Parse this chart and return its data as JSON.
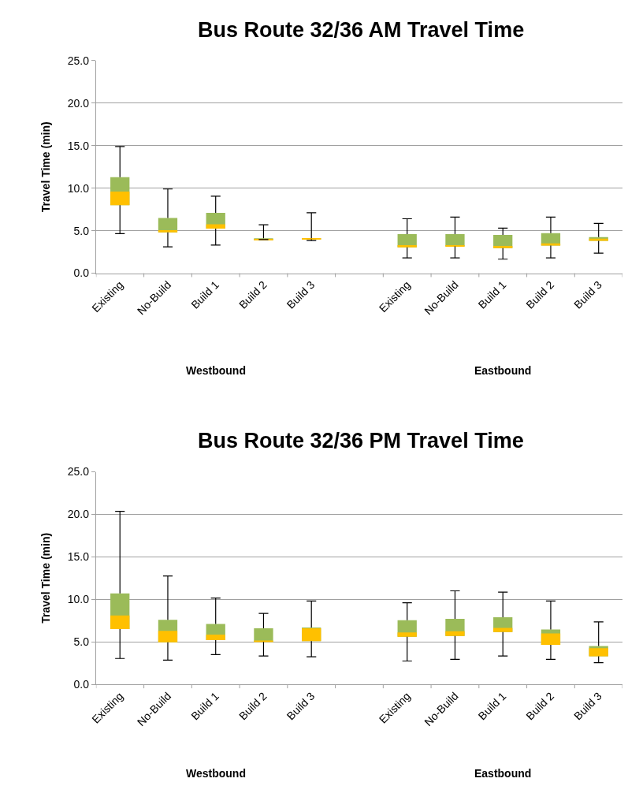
{
  "chart_data": [
    {
      "type": "box",
      "title": "Bus Route 32/36 AM Travel Time",
      "ylabel": "Travel Time (min)",
      "categories": [
        "Existing",
        "No-Build",
        "Build 1",
        "Build 2",
        "Build 3",
        null,
        "Existing",
        "No-Build",
        "Build 1",
        "Build 2",
        "Build 3"
      ],
      "colors": [
        "#ffc000",
        "#ffc000",
        "#ffc000",
        "#ffc000",
        "#ffc000",
        null,
        "#ffc000",
        "#ffc000",
        "#ffc000",
        "#ffc000",
        "#ffc000"
      ],
      "series": [
        {
          "color": "#9bbb59",
          "boxes": [
            {
              "low": 4.65,
              "q1": 8.0,
              "median": 9.6,
              "q3": 11.3,
              "high": 14.9
            },
            {
              "low": 3.1,
              "q1": 4.8,
              "median": 5.05,
              "q3": 6.5,
              "high": 9.9
            },
            {
              "low": 3.3,
              "q1": 5.25,
              "median": 5.75,
              "q3": 7.1,
              "high": 9.05
            },
            {
              "low": 3.95,
              "q1": 3.95,
              "median": 4.0,
              "q3": 4.1,
              "high": 5.7
            },
            {
              "low": 3.85,
              "q1": 4.0,
              "median": 4.05,
              "q3": 4.1,
              "high": 7.1
            },
            null,
            {
              "low": 1.8,
              "q1": 3.05,
              "median": 3.3,
              "q3": 4.6,
              "high": 6.4
            },
            {
              "low": 1.8,
              "q1": 3.15,
              "median": 3.3,
              "q3": 4.6,
              "high": 6.6
            },
            {
              "low": 1.65,
              "q1": 2.95,
              "median": 3.2,
              "q3": 4.5,
              "high": 5.3
            },
            {
              "low": 1.8,
              "q1": 3.25,
              "median": 3.5,
              "q3": 4.7,
              "high": 6.6
            },
            {
              "low": 2.35,
              "q1": 3.8,
              "median": 4.05,
              "q3": 4.25,
              "high": 5.85
            }
          ]
        }
      ],
      "ylim": [
        0,
        25
      ],
      "yticks": [
        {
          "value": 0,
          "label": "0.0"
        },
        {
          "value": 5,
          "label": "5.0"
        },
        {
          "value": 10,
          "label": "10.0"
        },
        {
          "value": 15,
          "label": "15.0"
        },
        {
          "value": 20,
          "label": "20.0"
        },
        {
          "value": 25,
          "label": "25.0"
        }
      ],
      "grid": "y",
      "annotations": [
        "Westbound",
        "Eastbound"
      ]
    },
    {
      "type": "box",
      "title": "Bus Route 32/36 PM Travel Time",
      "ylabel": "Travel Time (min)",
      "categories": [
        "Existing",
        "No-Build",
        "Build 1",
        "Build 2",
        "Build 3",
        null,
        "Existing",
        "No-Build",
        "Build 1",
        "Build 2",
        "Build 3"
      ],
      "colors": [
        "#ffc000",
        "#ffc000",
        "#ffc000",
        "#ffc000",
        "#ffc000",
        null,
        "#ffc000",
        "#ffc000",
        "#ffc000",
        "#ffc000",
        "#ffc000"
      ],
      "series": [
        {
          "color": "#9bbb59",
          "boxes": [
            {
              "low": 3.05,
              "q1": 6.5,
              "median": 8.1,
              "q3": 10.7,
              "high": 20.35
            },
            {
              "low": 2.85,
              "q1": 4.95,
              "median": 6.3,
              "q3": 7.6,
              "high": 12.75
            },
            {
              "low": 3.5,
              "q1": 5.2,
              "median": 5.85,
              "q3": 7.1,
              "high": 10.15
            },
            {
              "low": 3.35,
              "q1": 5.0,
              "median": 5.1,
              "q3": 6.6,
              "high": 8.35
            },
            {
              "low": 3.25,
              "q1": 5.1,
              "median": 6.6,
              "q3": 6.7,
              "high": 9.8
            },
            null,
            {
              "low": 2.75,
              "q1": 5.6,
              "median": 6.1,
              "q3": 7.55,
              "high": 9.6
            },
            {
              "low": 2.95,
              "q1": 5.7,
              "median": 6.25,
              "q3": 7.7,
              "high": 11.0
            },
            {
              "low": 3.35,
              "q1": 6.15,
              "median": 6.65,
              "q3": 7.9,
              "high": 10.85
            },
            {
              "low": 2.95,
              "q1": 4.65,
              "median": 6.0,
              "q3": 6.45,
              "high": 9.8
            },
            {
              "low": 2.55,
              "q1": 3.3,
              "median": 4.25,
              "q3": 4.5,
              "high": 7.35
            }
          ]
        }
      ],
      "ylim": [
        0,
        25
      ],
      "yticks": [
        {
          "value": 0,
          "label": "0.0"
        },
        {
          "value": 5,
          "label": "5.0"
        },
        {
          "value": 10,
          "label": "10.0"
        },
        {
          "value": 15,
          "label": "15.0"
        },
        {
          "value": 20,
          "label": "20.0"
        },
        {
          "value": 25,
          "label": "25.0"
        }
      ],
      "grid": "y",
      "annotations": [
        "Westbound",
        "Eastbound"
      ]
    }
  ]
}
